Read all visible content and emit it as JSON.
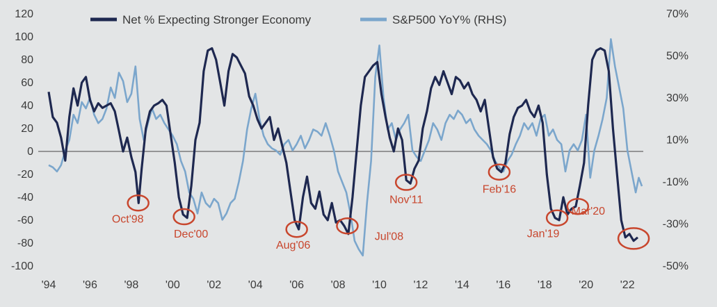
{
  "chart_data": {
    "type": "line",
    "title": "",
    "xlabel": "",
    "ylabel": "",
    "x_ticks": [
      "'94",
      "'96",
      "'98",
      "'00",
      "'02",
      "'04",
      "'06",
      "'08",
      "'10",
      "'12",
      "'14",
      "'16",
      "'18",
      "'20",
      "'22"
    ],
    "x_range": [
      1994,
      2022.6
    ],
    "y_left": {
      "ticks": [
        120,
        100,
        80,
        60,
        40,
        20,
        0,
        -20,
        -40,
        -60,
        -80,
        -100
      ],
      "range": [
        -100,
        120
      ]
    },
    "y_right": {
      "ticks": [
        "70%",
        "50%",
        "30%",
        "10%",
        "-10%",
        "-30%",
        "-50%"
      ],
      "range": [
        -50,
        70
      ]
    },
    "series": [
      {
        "name": "Net % Expecting Stronger Economy",
        "axis": "left",
        "color": "#1e2850",
        "points": [
          [
            1994.0,
            52
          ],
          [
            1994.2,
            30
          ],
          [
            1994.4,
            25
          ],
          [
            1994.6,
            12
          ],
          [
            1994.8,
            -8
          ],
          [
            1995.0,
            30
          ],
          [
            1995.2,
            55
          ],
          [
            1995.4,
            40
          ],
          [
            1995.6,
            60
          ],
          [
            1995.8,
            65
          ],
          [
            1996.0,
            45
          ],
          [
            1996.2,
            35
          ],
          [
            1996.4,
            42
          ],
          [
            1996.6,
            38
          ],
          [
            1996.8,
            40
          ],
          [
            1997.0,
            42
          ],
          [
            1997.2,
            35
          ],
          [
            1997.4,
            18
          ],
          [
            1997.6,
            0
          ],
          [
            1997.8,
            12
          ],
          [
            1998.0,
            -5
          ],
          [
            1998.2,
            -18
          ],
          [
            1998.35,
            -45
          ],
          [
            1998.5,
            -15
          ],
          [
            1998.7,
            20
          ],
          [
            1998.9,
            35
          ],
          [
            1999.1,
            40
          ],
          [
            1999.3,
            42
          ],
          [
            1999.5,
            45
          ],
          [
            1999.7,
            40
          ],
          [
            1999.9,
            15
          ],
          [
            2000.1,
            -10
          ],
          [
            2000.3,
            -40
          ],
          [
            2000.5,
            -55
          ],
          [
            2000.7,
            -58
          ],
          [
            2000.9,
            -30
          ],
          [
            2001.1,
            10
          ],
          [
            2001.3,
            25
          ],
          [
            2001.5,
            70
          ],
          [
            2001.7,
            88
          ],
          [
            2001.9,
            90
          ],
          [
            2002.1,
            80
          ],
          [
            2002.3,
            60
          ],
          [
            2002.5,
            40
          ],
          [
            2002.7,
            70
          ],
          [
            2002.9,
            85
          ],
          [
            2003.1,
            82
          ],
          [
            2003.3,
            75
          ],
          [
            2003.5,
            68
          ],
          [
            2003.7,
            48
          ],
          [
            2003.9,
            40
          ],
          [
            2004.1,
            28
          ],
          [
            2004.3,
            20
          ],
          [
            2004.5,
            25
          ],
          [
            2004.7,
            30
          ],
          [
            2004.9,
            10
          ],
          [
            2005.1,
            20
          ],
          [
            2005.3,
            5
          ],
          [
            2005.5,
            -10
          ],
          [
            2005.7,
            -35
          ],
          [
            2005.9,
            -60
          ],
          [
            2006.1,
            -68
          ],
          [
            2006.3,
            -40
          ],
          [
            2006.5,
            -22
          ],
          [
            2006.7,
            -45
          ],
          [
            2006.9,
            -50
          ],
          [
            2007.1,
            -35
          ],
          [
            2007.3,
            -55
          ],
          [
            2007.5,
            -60
          ],
          [
            2007.7,
            -45
          ],
          [
            2007.9,
            -62
          ],
          [
            2008.1,
            -60
          ],
          [
            2008.3,
            -65
          ],
          [
            2008.5,
            -72
          ],
          [
            2008.7,
            -40
          ],
          [
            2008.9,
            0
          ],
          [
            2009.1,
            40
          ],
          [
            2009.3,
            65
          ],
          [
            2009.5,
            70
          ],
          [
            2009.7,
            75
          ],
          [
            2009.9,
            78
          ],
          [
            2010.1,
            50
          ],
          [
            2010.3,
            30
          ],
          [
            2010.5,
            12
          ],
          [
            2010.7,
            0
          ],
          [
            2010.9,
            20
          ],
          [
            2011.1,
            10
          ],
          [
            2011.3,
            -25
          ],
          [
            2011.5,
            -28
          ],
          [
            2011.7,
            -15
          ],
          [
            2011.9,
            -8
          ],
          [
            2012.1,
            20
          ],
          [
            2012.3,
            35
          ],
          [
            2012.5,
            55
          ],
          [
            2012.7,
            65
          ],
          [
            2012.9,
            58
          ],
          [
            2013.1,
            70
          ],
          [
            2013.3,
            60
          ],
          [
            2013.5,
            50
          ],
          [
            2013.7,
            65
          ],
          [
            2013.9,
            62
          ],
          [
            2014.1,
            55
          ],
          [
            2014.3,
            60
          ],
          [
            2014.5,
            50
          ],
          [
            2014.7,
            45
          ],
          [
            2014.9,
            35
          ],
          [
            2015.1,
            45
          ],
          [
            2015.3,
            20
          ],
          [
            2015.5,
            -5
          ],
          [
            2015.7,
            -15
          ],
          [
            2015.9,
            -18
          ],
          [
            2016.1,
            -10
          ],
          [
            2016.3,
            15
          ],
          [
            2016.5,
            30
          ],
          [
            2016.7,
            38
          ],
          [
            2016.9,
            40
          ],
          [
            2017.1,
            45
          ],
          [
            2017.3,
            35
          ],
          [
            2017.5,
            30
          ],
          [
            2017.7,
            40
          ],
          [
            2017.9,
            25
          ],
          [
            2018.1,
            -20
          ],
          [
            2018.3,
            -50
          ],
          [
            2018.5,
            -58
          ],
          [
            2018.7,
            -60
          ],
          [
            2018.9,
            -40
          ],
          [
            2019.1,
            -55
          ],
          [
            2019.3,
            -50
          ],
          [
            2019.5,
            -48
          ],
          [
            2019.7,
            -30
          ],
          [
            2019.9,
            -10
          ],
          [
            2020.1,
            40
          ],
          [
            2020.3,
            80
          ],
          [
            2020.5,
            88
          ],
          [
            2020.7,
            90
          ],
          [
            2020.9,
            88
          ],
          [
            2021.1,
            70
          ],
          [
            2021.3,
            20
          ],
          [
            2021.5,
            -20
          ],
          [
            2021.7,
            -60
          ],
          [
            2021.9,
            -75
          ],
          [
            2022.1,
            -72
          ],
          [
            2022.3,
            -78
          ],
          [
            2022.5,
            -75
          ]
        ]
      },
      {
        "name": "S&P500 YoY% (RHS)",
        "axis": "right",
        "color": "#7ba6cc",
        "points": [
          [
            1994.0,
            -2
          ],
          [
            1994.2,
            -3
          ],
          [
            1994.4,
            -5
          ],
          [
            1994.6,
            -2
          ],
          [
            1994.8,
            5
          ],
          [
            1995.0,
            10
          ],
          [
            1995.2,
            22
          ],
          [
            1995.4,
            18
          ],
          [
            1995.6,
            28
          ],
          [
            1995.8,
            25
          ],
          [
            1996.0,
            30
          ],
          [
            1996.2,
            22
          ],
          [
            1996.4,
            18
          ],
          [
            1996.6,
            20
          ],
          [
            1996.8,
            25
          ],
          [
            1997.0,
            35
          ],
          [
            1997.2,
            30
          ],
          [
            1997.4,
            42
          ],
          [
            1997.6,
            38
          ],
          [
            1997.8,
            28
          ],
          [
            1998.0,
            32
          ],
          [
            1998.2,
            45
          ],
          [
            1998.4,
            20
          ],
          [
            1998.6,
            10
          ],
          [
            1998.8,
            18
          ],
          [
            1999.0,
            25
          ],
          [
            1999.2,
            20
          ],
          [
            1999.4,
            22
          ],
          [
            1999.6,
            18
          ],
          [
            1999.8,
            15
          ],
          [
            2000.0,
            12
          ],
          [
            2000.2,
            8
          ],
          [
            2000.4,
            0
          ],
          [
            2000.6,
            -5
          ],
          [
            2000.8,
            -15
          ],
          [
            2001.0,
            -18
          ],
          [
            2001.2,
            -25
          ],
          [
            2001.4,
            -15
          ],
          [
            2001.6,
            -20
          ],
          [
            2001.8,
            -22
          ],
          [
            2002.0,
            -18
          ],
          [
            2002.2,
            -20
          ],
          [
            2002.4,
            -28
          ],
          [
            2002.6,
            -25
          ],
          [
            2002.8,
            -20
          ],
          [
            2003.0,
            -18
          ],
          [
            2003.2,
            -10
          ],
          [
            2003.4,
            0
          ],
          [
            2003.6,
            15
          ],
          [
            2003.8,
            25
          ],
          [
            2004.0,
            32
          ],
          [
            2004.2,
            20
          ],
          [
            2004.4,
            12
          ],
          [
            2004.6,
            8
          ],
          [
            2004.8,
            6
          ],
          [
            2005.0,
            5
          ],
          [
            2005.2,
            3
          ],
          [
            2005.4,
            8
          ],
          [
            2005.6,
            10
          ],
          [
            2005.8,
            5
          ],
          [
            2006.0,
            8
          ],
          [
            2006.2,
            12
          ],
          [
            2006.4,
            6
          ],
          [
            2006.6,
            10
          ],
          [
            2006.8,
            15
          ],
          [
            2007.0,
            14
          ],
          [
            2007.2,
            12
          ],
          [
            2007.4,
            18
          ],
          [
            2007.6,
            12
          ],
          [
            2007.8,
            5
          ],
          [
            2008.0,
            -5
          ],
          [
            2008.2,
            -10
          ],
          [
            2008.4,
            -15
          ],
          [
            2008.6,
            -25
          ],
          [
            2008.8,
            -38
          ],
          [
            2009.0,
            -42
          ],
          [
            2009.2,
            -45
          ],
          [
            2009.4,
            -20
          ],
          [
            2009.6,
            0
          ],
          [
            2009.8,
            40
          ],
          [
            2010.0,
            55
          ],
          [
            2010.2,
            30
          ],
          [
            2010.4,
            15
          ],
          [
            2010.6,
            18
          ],
          [
            2010.8,
            10
          ],
          [
            2011.0,
            15
          ],
          [
            2011.2,
            18
          ],
          [
            2011.4,
            22
          ],
          [
            2011.6,
            5
          ],
          [
            2011.8,
            2
          ],
          [
            2012.0,
            0
          ],
          [
            2012.2,
            5
          ],
          [
            2012.4,
            10
          ],
          [
            2012.6,
            18
          ],
          [
            2012.8,
            15
          ],
          [
            2013.0,
            10
          ],
          [
            2013.2,
            18
          ],
          [
            2013.4,
            22
          ],
          [
            2013.6,
            20
          ],
          [
            2013.8,
            24
          ],
          [
            2014.0,
            22
          ],
          [
            2014.2,
            18
          ],
          [
            2014.4,
            20
          ],
          [
            2014.6,
            15
          ],
          [
            2014.8,
            12
          ],
          [
            2015.0,
            10
          ],
          [
            2015.2,
            8
          ],
          [
            2015.4,
            5
          ],
          [
            2015.6,
            0
          ],
          [
            2015.8,
            -3
          ],
          [
            2016.0,
            -5
          ],
          [
            2016.2,
            0
          ],
          [
            2016.4,
            3
          ],
          [
            2016.6,
            8
          ],
          [
            2016.8,
            12
          ],
          [
            2017.0,
            18
          ],
          [
            2017.2,
            15
          ],
          [
            2017.4,
            18
          ],
          [
            2017.6,
            12
          ],
          [
            2017.8,
            20
          ],
          [
            2018.0,
            22
          ],
          [
            2018.2,
            12
          ],
          [
            2018.4,
            15
          ],
          [
            2018.6,
            10
          ],
          [
            2018.8,
            8
          ],
          [
            2019.0,
            -5
          ],
          [
            2019.2,
            5
          ],
          [
            2019.4,
            8
          ],
          [
            2019.6,
            5
          ],
          [
            2019.8,
            10
          ],
          [
            2020.0,
            22
          ],
          [
            2020.2,
            -8
          ],
          [
            2020.4,
            5
          ],
          [
            2020.6,
            12
          ],
          [
            2020.8,
            20
          ],
          [
            2021.0,
            30
          ],
          [
            2021.2,
            58
          ],
          [
            2021.4,
            45
          ],
          [
            2021.6,
            35
          ],
          [
            2021.8,
            25
          ],
          [
            2022.0,
            5
          ],
          [
            2022.2,
            -5
          ],
          [
            2022.4,
            -15
          ],
          [
            2022.55,
            -8
          ],
          [
            2022.7,
            -12
          ]
        ]
      }
    ],
    "annotations": [
      {
        "label": "Oct'98",
        "x": 1998.33,
        "y": -45
      },
      {
        "label": "Dec'00",
        "x": 2000.55,
        "y": -57
      },
      {
        "label": "Aug'06",
        "x": 2006.0,
        "y": -68
      },
      {
        "label": "Jul'08",
        "x": 2008.45,
        "y": -65
      },
      {
        "label": "Nov'11",
        "x": 2011.3,
        "y": -27
      },
      {
        "label": "Feb'16",
        "x": 2015.8,
        "y": -18
      },
      {
        "label": "Jan'19",
        "x": 2018.6,
        "y": -58
      },
      {
        "label": "Mar'20",
        "x": 2019.6,
        "y": -48
      },
      {
        "label": "",
        "x": 2022.3,
        "y": -76
      }
    ],
    "annotation_color": "#c8462d",
    "zero_line_color": "#7a7a7a",
    "grid": false,
    "legend_position": "top"
  }
}
